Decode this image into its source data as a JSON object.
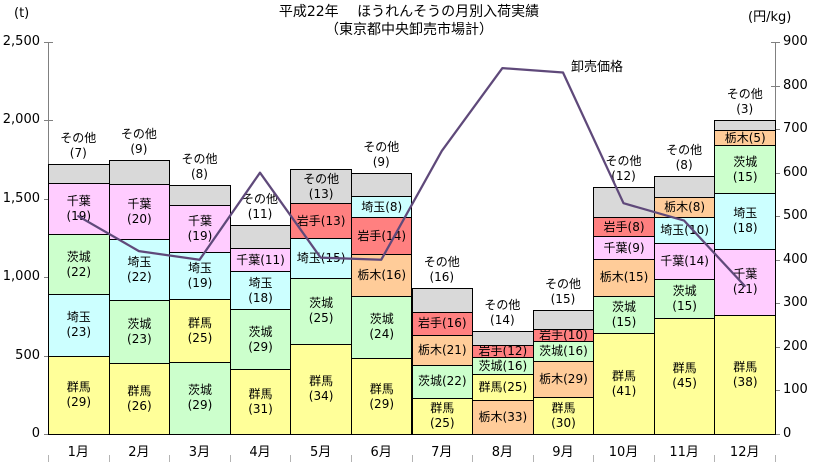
{
  "colors": {
    "群馬": "#FFFF99",
    "埼玉": "#CCFFFF",
    "茨城": "#CCFFCC",
    "千葉": "#FFCCFF",
    "岩手": "#FF8080",
    "栃木": "#FFCC99",
    "その他": "#D9D9D9",
    "price_line": "#5F497A",
    "axis": "#808080"
  },
  "chart_data": {
    "type": "stacked-bar+line",
    "title": "平成22年　 ほうれんそうの月別入荷実績",
    "subtitle": "（東京都中央卸売市場計）",
    "categories": [
      "1月",
      "2月",
      "3月",
      "4月",
      "5月",
      "6月",
      "7月",
      "8月",
      "9月",
      "10月",
      "11月",
      "12月"
    ],
    "bar_axis": {
      "unit": "(t)",
      "min": 0,
      "max": 2500,
      "tick_step": 500,
      "tick_labels": [
        "0",
        "500",
        "1,000",
        "1,500",
        "2,000",
        "2,500"
      ]
    },
    "line_axis": {
      "unit": "(円/kg)",
      "min": 0,
      "max": 900,
      "tick_step": 100,
      "tick_labels": [
        "0",
        "100",
        "200",
        "300",
        "400",
        "500",
        "600",
        "700",
        "800",
        "900"
      ]
    },
    "line_series": {
      "name": "卸売価格",
      "unit": "円/kg",
      "values": [
        500,
        420,
        400,
        600,
        405,
        400,
        650,
        840,
        830,
        530,
        490,
        340
      ]
    },
    "months": [
      {
        "label": "1月",
        "total_t": 1720,
        "segments": [
          {
            "name": "群馬",
            "value": 29,
            "label_style": "stacked"
          },
          {
            "name": "埼玉",
            "value": 23,
            "label_style": "stacked"
          },
          {
            "name": "茨城",
            "value": 22,
            "label_style": "stacked"
          },
          {
            "name": "千葉",
            "value": 19,
            "label_style": "stacked"
          },
          {
            "name": "その他",
            "value": 7,
            "label_style": "above"
          }
        ]
      },
      {
        "label": "2月",
        "total_t": 1750,
        "segments": [
          {
            "name": "群馬",
            "value": 26,
            "label_style": "stacked"
          },
          {
            "name": "茨城",
            "value": 23,
            "label_style": "stacked"
          },
          {
            "name": "埼玉",
            "value": 22,
            "label_style": "stacked"
          },
          {
            "name": "千葉",
            "value": 20,
            "label_style": "stacked"
          },
          {
            "name": "その他",
            "value": 9,
            "label_style": "above"
          }
        ]
      },
      {
        "label": "3月",
        "total_t": 1590,
        "segments": [
          {
            "name": "茨城",
            "value": 29,
            "label_style": "stacked"
          },
          {
            "name": "群馬",
            "value": 25,
            "label_style": "stacked"
          },
          {
            "name": "埼玉",
            "value": 19,
            "label_style": "stacked"
          },
          {
            "name": "千葉",
            "value": 19,
            "label_style": "stacked"
          },
          {
            "name": "その他",
            "value": 8,
            "label_style": "above"
          }
        ]
      },
      {
        "label": "4月",
        "total_t": 1330,
        "segments": [
          {
            "name": "群馬",
            "value": 31,
            "label_style": "stacked"
          },
          {
            "name": "茨城",
            "value": 29,
            "label_style": "stacked"
          },
          {
            "name": "埼玉",
            "value": 18,
            "label_style": "stacked"
          },
          {
            "name": "千葉",
            "value": 11,
            "label_style": "inline"
          },
          {
            "name": "その他",
            "value": 11,
            "label_style": "above"
          }
        ]
      },
      {
        "label": "5月",
        "total_t": 1690,
        "segments": [
          {
            "name": "群馬",
            "value": 34,
            "label_style": "stacked"
          },
          {
            "name": "茨城",
            "value": 25,
            "label_style": "stacked"
          },
          {
            "name": "埼玉",
            "value": 15,
            "label_style": "inline"
          },
          {
            "name": "岩手",
            "value": 13,
            "label_style": "inline"
          },
          {
            "name": "その他",
            "value": 13,
            "label_style": "stacked"
          }
        ]
      },
      {
        "label": "6月",
        "total_t": 1665,
        "segments": [
          {
            "name": "群馬",
            "value": 29,
            "label_style": "stacked"
          },
          {
            "name": "茨城",
            "value": 24,
            "label_style": "stacked"
          },
          {
            "name": "栃木",
            "value": 16,
            "label_style": "inline"
          },
          {
            "name": "岩手",
            "value": 14,
            "label_style": "inline"
          },
          {
            "name": "埼玉",
            "value": 8,
            "label_style": "inline"
          },
          {
            "name": "その他",
            "value": 9,
            "label_style": "above"
          }
        ]
      },
      {
        "label": "7月",
        "total_t": 930,
        "segments": [
          {
            "name": "群馬",
            "value": 25,
            "label_style": "stacked"
          },
          {
            "name": "茨城",
            "value": 22,
            "label_style": "inline"
          },
          {
            "name": "栃木",
            "value": 21,
            "label_style": "inline"
          },
          {
            "name": "岩手",
            "value": 16,
            "label_style": "inline"
          },
          {
            "name": "その他",
            "value": 16,
            "label_style": "above"
          }
        ]
      },
      {
        "label": "8月",
        "total_t": 660,
        "segments": [
          {
            "name": "栃木",
            "value": 33,
            "label_style": "inline"
          },
          {
            "name": "群馬",
            "value": 25,
            "label_style": "inline"
          },
          {
            "name": "茨城",
            "value": 16,
            "label_style": "inline"
          },
          {
            "name": "岩手",
            "value": 12,
            "label_style": "inline"
          },
          {
            "name": "その他",
            "value": 14,
            "label_style": "above"
          }
        ]
      },
      {
        "label": "9月",
        "total_t": 790,
        "segments": [
          {
            "name": "群馬",
            "value": 30,
            "label_style": "stacked"
          },
          {
            "name": "栃木",
            "value": 29,
            "label_style": "inline"
          },
          {
            "name": "茨城",
            "value": 16,
            "label_style": "inline"
          },
          {
            "name": "岩手",
            "value": 10,
            "label_style": "inline"
          },
          {
            "name": "その他",
            "value": 15,
            "label_style": "above"
          }
        ]
      },
      {
        "label": "10月",
        "total_t": 1575,
        "segments": [
          {
            "name": "群馬",
            "value": 41,
            "label_style": "stacked"
          },
          {
            "name": "茨城",
            "value": 15,
            "label_style": "stacked"
          },
          {
            "name": "栃木",
            "value": 15,
            "label_style": "inline"
          },
          {
            "name": "千葉",
            "value": 9,
            "label_style": "inline"
          },
          {
            "name": "岩手",
            "value": 8,
            "label_style": "inline"
          },
          {
            "name": "その他",
            "value": 12,
            "label_style": "above"
          }
        ]
      },
      {
        "label": "11月",
        "total_t": 1645,
        "segments": [
          {
            "name": "群馬",
            "value": 45,
            "label_style": "stacked"
          },
          {
            "name": "茨城",
            "value": 15,
            "label_style": "stacked"
          },
          {
            "name": "千葉",
            "value": 14,
            "label_style": "inline"
          },
          {
            "name": "埼玉",
            "value": 10,
            "label_style": "inline"
          },
          {
            "name": "栃木",
            "value": 8,
            "label_style": "inline"
          },
          {
            "name": "その他",
            "value": 8,
            "label_style": "above"
          }
        ]
      },
      {
        "label": "12月",
        "total_t": 2000,
        "segments": [
          {
            "name": "群馬",
            "value": 38,
            "label_style": "stacked"
          },
          {
            "name": "千葉",
            "value": 21,
            "label_style": "stacked"
          },
          {
            "name": "埼玉",
            "value": 18,
            "label_style": "stacked"
          },
          {
            "name": "茨城",
            "value": 15,
            "label_style": "stacked"
          },
          {
            "name": "栃木",
            "value": 5,
            "label_style": "inline"
          },
          {
            "name": "その他",
            "value": 3,
            "label_style": "above"
          }
        ]
      }
    ]
  }
}
